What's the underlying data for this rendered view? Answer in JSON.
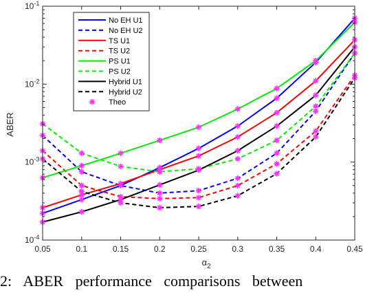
{
  "chart_data": {
    "type": "line",
    "xlabel_base": "α",
    "xlabel_sub": "2",
    "ylabel": "ABER",
    "yscale": "log",
    "xlim": [
      0.05,
      0.45
    ],
    "ylim": [
      0.0001,
      0.1
    ],
    "xticks": [
      "0.05",
      "0.1",
      "0.15",
      "0.2",
      "0.25",
      "0.3",
      "0.35",
      "0.4",
      "0.45"
    ],
    "yticks": [
      {
        "value": 0.0001,
        "base": "10",
        "exp": "-4"
      },
      {
        "value": 0.001,
        "base": "10",
        "exp": "-3"
      },
      {
        "value": 0.01,
        "base": "10",
        "exp": "-2"
      },
      {
        "value": 0.1,
        "base": "10",
        "exp": "-1"
      }
    ],
    "grid": false,
    "legend_position": "top-left",
    "x": [
      0.05,
      0.1,
      0.15,
      0.2,
      0.25,
      0.3,
      0.35,
      0.4,
      0.45
    ],
    "series": [
      {
        "name": "No EH U1",
        "color": "#0000ff",
        "dash": "solid",
        "values": [
          0.00022,
          0.00033,
          0.0005,
          0.00085,
          0.0015,
          0.0029,
          0.0066,
          0.019,
          0.07
        ]
      },
      {
        "name": "No EH U2",
        "color": "#0000ff",
        "dash": "dashed",
        "values": [
          0.0022,
          0.00075,
          0.0005,
          0.0004,
          0.00043,
          0.00062,
          0.0013,
          0.0045,
          0.025
        ]
      },
      {
        "name": "TS U1",
        "color": "#ff0000",
        "dash": "solid",
        "values": [
          0.00026,
          0.00038,
          0.00053,
          0.0008,
          0.0012,
          0.0021,
          0.0043,
          0.011,
          0.037
        ]
      },
      {
        "name": "TS U2",
        "color": "#ff0000",
        "dash": "dashed",
        "values": [
          0.0014,
          0.0005,
          0.00036,
          0.00034,
          0.00035,
          0.0005,
          0.00095,
          0.0025,
          0.013
        ]
      },
      {
        "name": "PS U1",
        "color": "#00ee00",
        "dash": "solid",
        "values": [
          0.00063,
          0.0009,
          0.0013,
          0.0019,
          0.0028,
          0.0048,
          0.0088,
          0.02,
          0.062
        ]
      },
      {
        "name": "PS U2",
        "color": "#00ee00",
        "dash": "dashed",
        "values": [
          0.0031,
          0.0013,
          0.00088,
          0.00075,
          0.00082,
          0.0011,
          0.0019,
          0.0052,
          0.025
        ]
      },
      {
        "name": "Hybrid U1",
        "color": "#000000",
        "dash": "solid",
        "values": [
          0.00017,
          0.00023,
          0.00033,
          0.00051,
          0.00079,
          0.0014,
          0.0029,
          0.0072,
          0.03
        ]
      },
      {
        "name": "Hybrid U2",
        "color": "#000000",
        "dash": "dashed",
        "values": [
          0.0011,
          0.00042,
          0.0003,
          0.00026,
          0.00027,
          0.00037,
          0.00071,
          0.0021,
          0.012
        ]
      }
    ],
    "theo_marker": {
      "name": "Theo",
      "color": "#ff33ff",
      "symbol": "asterisk"
    }
  },
  "caption": "2: ABER performance comparisons between"
}
